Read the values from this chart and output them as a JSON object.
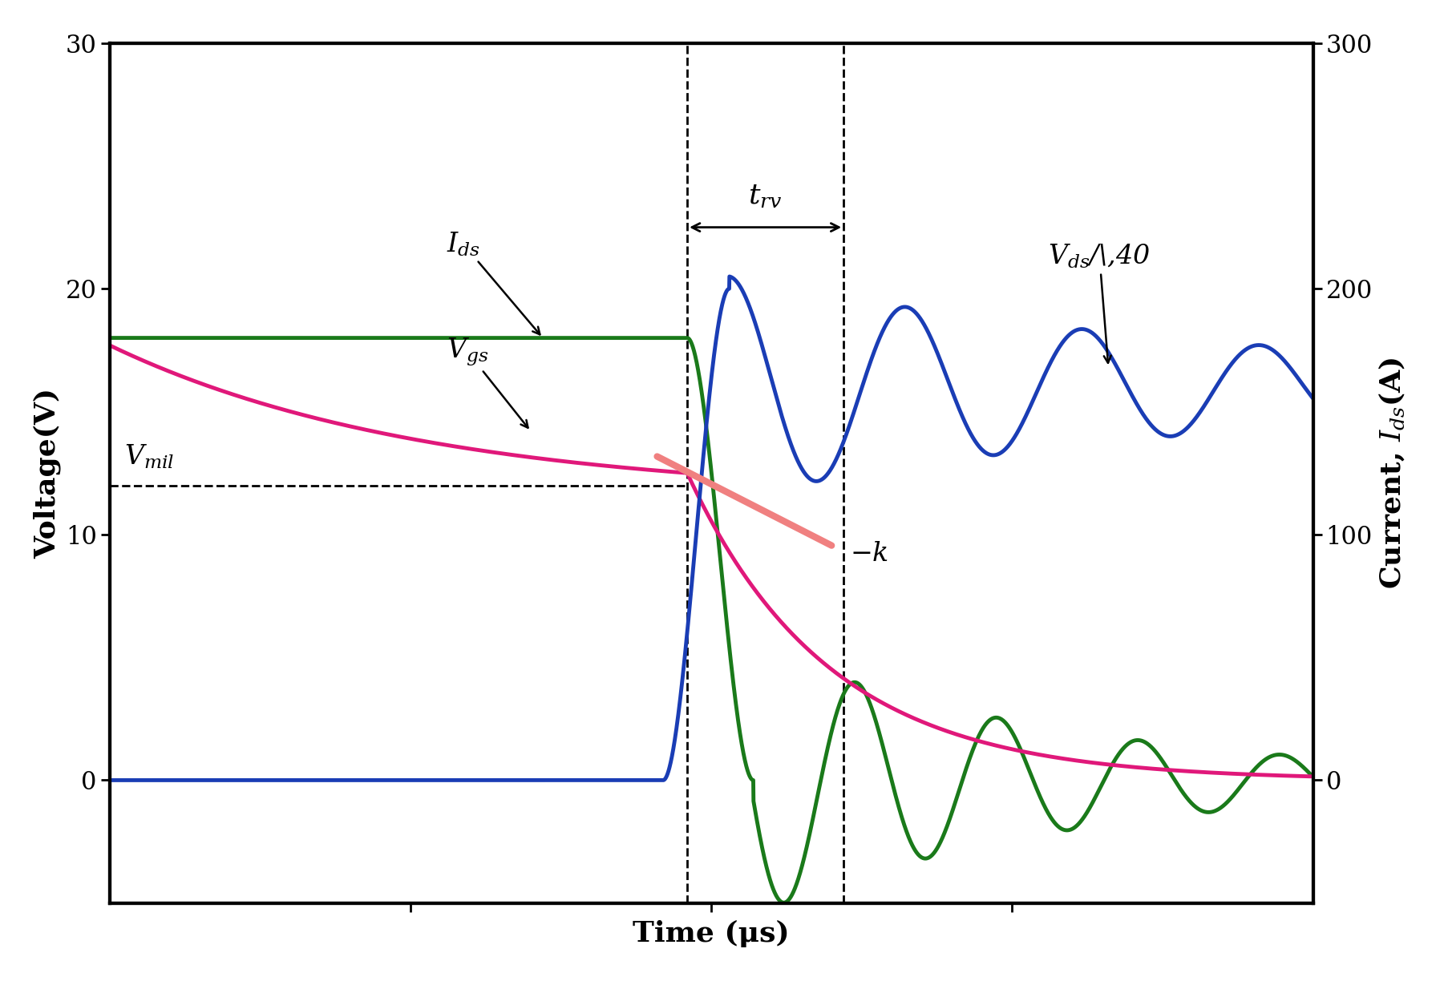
{
  "ylim_left": [
    -5,
    30
  ],
  "ylim_right": [
    -50,
    300
  ],
  "xlim": [
    0,
    10
  ],
  "xlabel": "Time (μs)",
  "ylabel_left": "Voltage(V)",
  "ylabel_right": "Current, $I_{ds}$(A)",
  "background_color": "#ffffff",
  "spine_lw": 3.0,
  "Vmil": 12.0,
  "t_rv_start": 4.8,
  "t_rv_end": 6.1,
  "colors": {
    "Ids": "#1a7a1a",
    "Vgs": "#e0187a",
    "Vds": "#1a3db5",
    "Vmil_line": "#000000",
    "slope_line": "#f08080"
  },
  "line_widths": {
    "Ids": 3.5,
    "Vgs": 3.5,
    "Vds": 3.5,
    "Vmil": 2.0,
    "slope": 6.0,
    "dashed": 2.0
  },
  "fontsize_tick": 22,
  "fontsize_label": 26,
  "fontsize_annot": 24
}
